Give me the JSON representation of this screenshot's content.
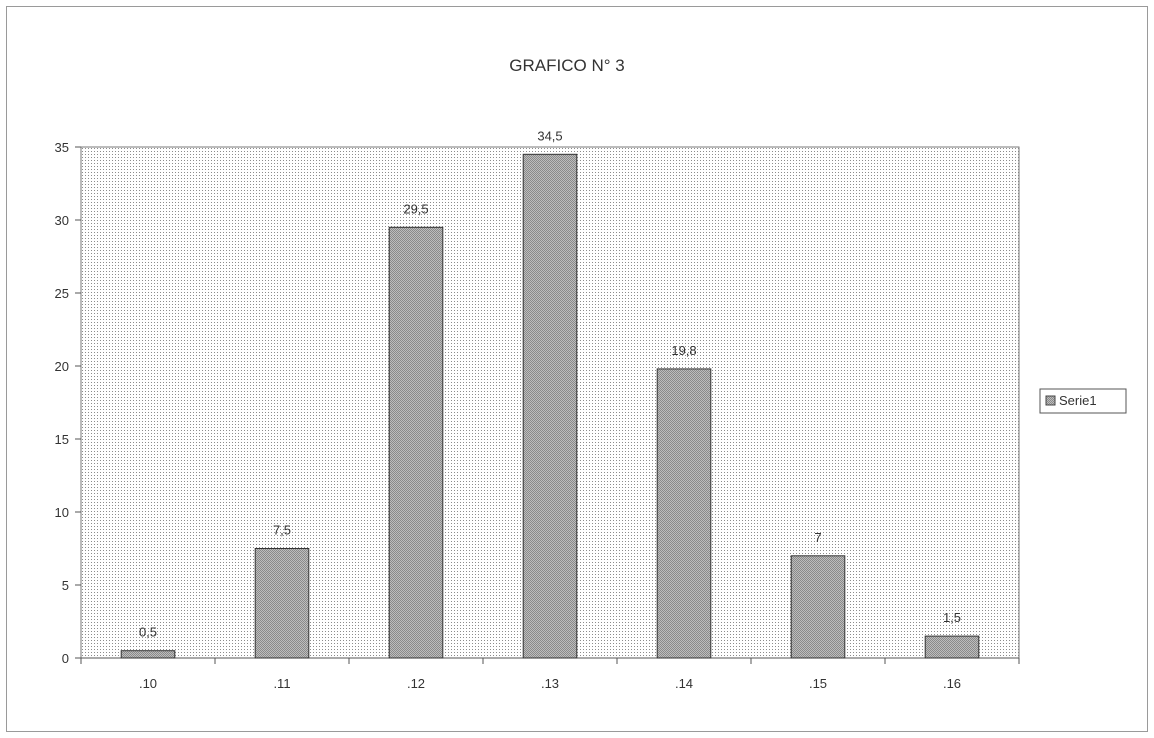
{
  "chart_data": {
    "type": "bar",
    "title": "GRAFICO N° 3",
    "xlabel": "",
    "ylabel": "",
    "categories": [
      ".10",
      ".11",
      ".12",
      ".13",
      ".14",
      ".15",
      ".16"
    ],
    "series": [
      {
        "name": "Serie1",
        "values": [
          0.5,
          7.5,
          29.5,
          34.5,
          19.8,
          7,
          1.5
        ],
        "labels": [
          "0,5",
          "7,5",
          "29,5",
          "34,5",
          "19,8",
          "7",
          "1,5"
        ]
      }
    ],
    "ylim": [
      0,
      35
    ],
    "yticks": [
      0,
      5,
      10,
      15,
      20,
      25,
      30,
      35
    ],
    "grid": false,
    "legend": "right"
  }
}
